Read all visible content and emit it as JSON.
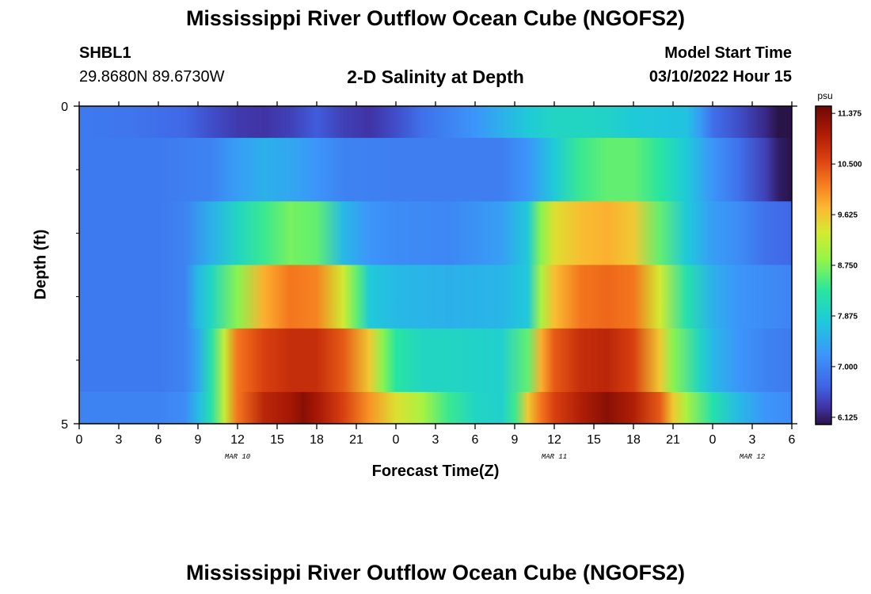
{
  "title": "Mississippi River Outflow Ocean Cube (NGOFS2)",
  "title_repeat": "Mississippi River Outflow Ocean Cube (NGOFS2)",
  "station": {
    "id": "SHBL1",
    "coords": "29.8680N  89.6730W"
  },
  "subtitle": "2-D Salinity at Depth",
  "model_start": {
    "label": "Model Start Time",
    "value": "03/10/2022 Hour 15"
  },
  "chart_data": {
    "type": "heatmap",
    "xlabel": "Forecast Time(Z)",
    "ylabel": "Depth (ft)",
    "x_range_hours": [
      0,
      54
    ],
    "y_range_ft": [
      0,
      5
    ],
    "x_ticks": [
      {
        "hour": 0,
        "label": "0"
      },
      {
        "hour": 3,
        "label": "3"
      },
      {
        "hour": 6,
        "label": "6"
      },
      {
        "hour": 9,
        "label": "9"
      },
      {
        "hour": 12,
        "label": "12"
      },
      {
        "hour": 15,
        "label": "15"
      },
      {
        "hour": 18,
        "label": "18"
      },
      {
        "hour": 21,
        "label": "21"
      },
      {
        "hour": 24,
        "label": "0"
      },
      {
        "hour": 27,
        "label": "3"
      },
      {
        "hour": 30,
        "label": "6"
      },
      {
        "hour": 33,
        "label": "9"
      },
      {
        "hour": 36,
        "label": "12"
      },
      {
        "hour": 39,
        "label": "15"
      },
      {
        "hour": 42,
        "label": "18"
      },
      {
        "hour": 45,
        "label": "21"
      },
      {
        "hour": 48,
        "label": "0"
      },
      {
        "hour": 51,
        "label": "3"
      },
      {
        "hour": 54,
        "label": "6"
      }
    ],
    "date_labels": [
      {
        "hour": 12,
        "label": "MAR 10"
      },
      {
        "hour": 36,
        "label": "MAR 11"
      },
      {
        "hour": 51,
        "label": "MAR 12"
      }
    ],
    "y_ticks": [
      {
        "depth": 0,
        "label": "0"
      },
      {
        "depth": 5,
        "label": "5"
      }
    ],
    "y_minor_ticks": [
      1,
      2,
      3,
      4
    ],
    "depth_bands": [
      {
        "depth_top": 0.0,
        "depth_bottom": 0.5,
        "points": [
          [
            0,
            6.9
          ],
          [
            4,
            6.85
          ],
          [
            8,
            6.7
          ],
          [
            10,
            6.5
          ],
          [
            12,
            6.35
          ],
          [
            14,
            6.3
          ],
          [
            16,
            6.4
          ],
          [
            18,
            6.6
          ],
          [
            20,
            6.4
          ],
          [
            22,
            6.3
          ],
          [
            24,
            6.5
          ],
          [
            26,
            6.8
          ],
          [
            28,
            7.0
          ],
          [
            30,
            7.2
          ],
          [
            32,
            7.5
          ],
          [
            34,
            7.8
          ],
          [
            36,
            8.0
          ],
          [
            38,
            8.0
          ],
          [
            40,
            7.95
          ],
          [
            42,
            7.8
          ],
          [
            46,
            7.7
          ],
          [
            47,
            7.3
          ],
          [
            48,
            6.8
          ],
          [
            50,
            6.5
          ],
          [
            52,
            6.2
          ],
          [
            53,
            6.0
          ],
          [
            54,
            5.8
          ]
        ]
      },
      {
        "depth_top": 0.5,
        "depth_bottom": 1.5,
        "points": [
          [
            0,
            6.9
          ],
          [
            6,
            6.9
          ],
          [
            10,
            7.0
          ],
          [
            12,
            7.3
          ],
          [
            14,
            7.5
          ],
          [
            16,
            7.4
          ],
          [
            18,
            7.2
          ],
          [
            20,
            7.0
          ],
          [
            24,
            6.95
          ],
          [
            28,
            6.95
          ],
          [
            32,
            6.95
          ],
          [
            34,
            7.2
          ],
          [
            36,
            7.8
          ],
          [
            38,
            8.4
          ],
          [
            40,
            8.6
          ],
          [
            42,
            8.6
          ],
          [
            44,
            8.3
          ],
          [
            46,
            7.8
          ],
          [
            48,
            7.2
          ],
          [
            50,
            6.8
          ],
          [
            52,
            6.4
          ],
          [
            53,
            6.1
          ],
          [
            54,
            6.0
          ]
        ]
      },
      {
        "depth_top": 1.5,
        "depth_bottom": 2.5,
        "points": [
          [
            0,
            6.9
          ],
          [
            6,
            6.9
          ],
          [
            8,
            7.0
          ],
          [
            10,
            7.5
          ],
          [
            12,
            8.0
          ],
          [
            14,
            8.4
          ],
          [
            16,
            8.7
          ],
          [
            18,
            8.6
          ],
          [
            20,
            7.6
          ],
          [
            22,
            7.2
          ],
          [
            24,
            7.1
          ],
          [
            28,
            7.05
          ],
          [
            32,
            7.3
          ],
          [
            34,
            7.8
          ],
          [
            35,
            8.8
          ],
          [
            36,
            9.4
          ],
          [
            38,
            9.7
          ],
          [
            40,
            9.8
          ],
          [
            42,
            9.6
          ],
          [
            44,
            8.6
          ],
          [
            46,
            7.8
          ],
          [
            48,
            7.3
          ],
          [
            50,
            7.1
          ],
          [
            52,
            6.8
          ],
          [
            54,
            6.7
          ]
        ]
      },
      {
        "depth_top": 2.5,
        "depth_bottom": 3.5,
        "points": [
          [
            0,
            6.9
          ],
          [
            6,
            6.9
          ],
          [
            8,
            7.0
          ],
          [
            9,
            7.6
          ],
          [
            10,
            8.0
          ],
          [
            12,
            8.8
          ],
          [
            14,
            9.8
          ],
          [
            16,
            10.2
          ],
          [
            18,
            10.1
          ],
          [
            20,
            9.3
          ],
          [
            21,
            8.6
          ],
          [
            22,
            7.8
          ],
          [
            24,
            7.6
          ],
          [
            28,
            7.5
          ],
          [
            32,
            7.55
          ],
          [
            34,
            7.8
          ],
          [
            35,
            9.0
          ],
          [
            36,
            9.7
          ],
          [
            38,
            10.2
          ],
          [
            40,
            10.3
          ],
          [
            42,
            10.2
          ],
          [
            44,
            9.3
          ],
          [
            46,
            8.2
          ],
          [
            48,
            7.5
          ],
          [
            50,
            7.2
          ],
          [
            54,
            7.0
          ]
        ]
      },
      {
        "depth_top": 3.5,
        "depth_bottom": 4.5,
        "points": [
          [
            0,
            6.9
          ],
          [
            6,
            6.9
          ],
          [
            8,
            7.0
          ],
          [
            9,
            7.4
          ],
          [
            10,
            8.2
          ],
          [
            11,
            9.2
          ],
          [
            12,
            10.2
          ],
          [
            14,
            10.6
          ],
          [
            16,
            10.8
          ],
          [
            18,
            10.8
          ],
          [
            20,
            10.4
          ],
          [
            22,
            9.6
          ],
          [
            23,
            8.8
          ],
          [
            24,
            8.3
          ],
          [
            26,
            8.0
          ],
          [
            28,
            8.0
          ],
          [
            30,
            7.95
          ],
          [
            32,
            7.9
          ],
          [
            34,
            8.6
          ],
          [
            35,
            9.8
          ],
          [
            36,
            10.4
          ],
          [
            38,
            10.8
          ],
          [
            40,
            10.9
          ],
          [
            42,
            10.6
          ],
          [
            44,
            9.6
          ],
          [
            45,
            8.8
          ],
          [
            47,
            8.0
          ],
          [
            48,
            7.6
          ],
          [
            50,
            7.2
          ],
          [
            52,
            7.0
          ],
          [
            54,
            6.9
          ]
        ]
      },
      {
        "depth_top": 4.5,
        "depth_bottom": 5.0,
        "points": [
          [
            0,
            7.0
          ],
          [
            6,
            7.0
          ],
          [
            8,
            7.1
          ],
          [
            9,
            7.6
          ],
          [
            10,
            8.2
          ],
          [
            11,
            9.2
          ],
          [
            12,
            10.2
          ],
          [
            14,
            10.9
          ],
          [
            16,
            11.1
          ],
          [
            17,
            11.3
          ],
          [
            18,
            11.1
          ],
          [
            20,
            10.6
          ],
          [
            22,
            10.0
          ],
          [
            24,
            9.4
          ],
          [
            26,
            9.0
          ],
          [
            28,
            8.4
          ],
          [
            30,
            8.0
          ],
          [
            32,
            7.9
          ],
          [
            33,
            8.4
          ],
          [
            34,
            9.6
          ],
          [
            35,
            10.2
          ],
          [
            36,
            10.6
          ],
          [
            38,
            11.0
          ],
          [
            40,
            11.3
          ],
          [
            42,
            11.0
          ],
          [
            44,
            10.4
          ],
          [
            45,
            9.6
          ],
          [
            46,
            9.0
          ],
          [
            48,
            8.2
          ],
          [
            50,
            7.6
          ],
          [
            52,
            7.2
          ],
          [
            54,
            7.1
          ]
        ]
      }
    ],
    "colorbar": {
      "unit": "psu",
      "min": 6.0,
      "max": 11.5,
      "tick_values": [
        6.125,
        7.0,
        7.875,
        8.75,
        9.625,
        10.5,
        11.375
      ],
      "tick_labels": [
        "6.125",
        "7.000",
        "7.875",
        "8.750",
        "9.625",
        "10.500",
        "11.375"
      ]
    }
  }
}
